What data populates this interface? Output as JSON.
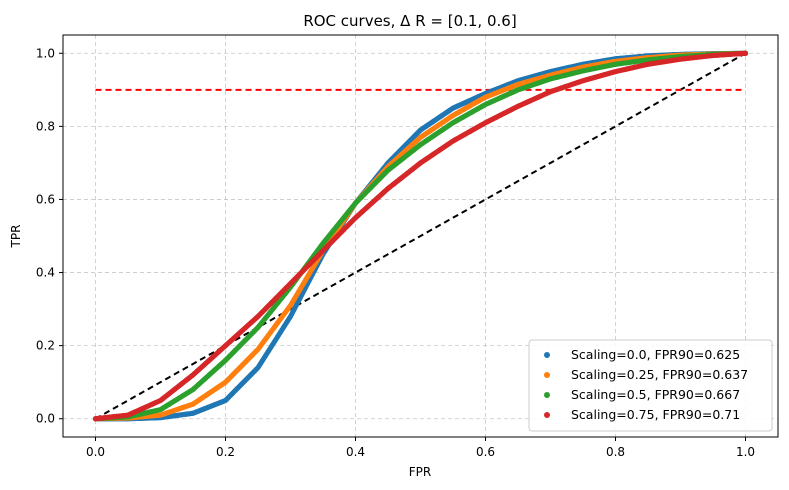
{
  "chart_data": {
    "type": "scatter",
    "title": "ROC curves, Δ R = [0.1, 0.6]",
    "xlabel": "FPR",
    "ylabel": "TPR",
    "xlim": [
      -0.05,
      1.05
    ],
    "ylim": [
      -0.05,
      1.05
    ],
    "xticks": [
      0.0,
      0.2,
      0.4,
      0.6,
      0.8,
      1.0
    ],
    "yticks": [
      0.0,
      0.2,
      0.4,
      0.6,
      0.8,
      1.0
    ],
    "xtick_labels": [
      "0.0",
      "0.2",
      "0.4",
      "0.6",
      "0.8",
      "1.0"
    ],
    "ytick_labels": [
      "0.0",
      "0.2",
      "0.4",
      "0.6",
      "0.8",
      "1.0"
    ],
    "grid": true,
    "legend_position": "lower-right",
    "series": [
      {
        "name": "Scaling=0.0, FPR90=0.625",
        "color": "#1f77b4",
        "x": [
          0.0,
          0.05,
          0.1,
          0.15,
          0.2,
          0.25,
          0.3,
          0.35,
          0.4,
          0.45,
          0.5,
          0.55,
          0.6,
          0.65,
          0.7,
          0.75,
          0.8,
          0.85,
          0.9,
          0.95,
          1.0
        ],
        "y": [
          0.0,
          0.0,
          0.003,
          0.015,
          0.05,
          0.14,
          0.28,
          0.45,
          0.59,
          0.7,
          0.79,
          0.85,
          0.89,
          0.925,
          0.95,
          0.97,
          0.985,
          0.993,
          0.997,
          0.999,
          1.0
        ]
      },
      {
        "name": "Scaling=0.25, FPR90=0.637",
        "color": "#ff7f0e",
        "x": [
          0.0,
          0.05,
          0.1,
          0.15,
          0.2,
          0.25,
          0.3,
          0.35,
          0.4,
          0.45,
          0.5,
          0.55,
          0.6,
          0.65,
          0.7,
          0.75,
          0.8,
          0.85,
          0.9,
          0.95,
          1.0
        ],
        "y": [
          0.0,
          0.002,
          0.01,
          0.04,
          0.1,
          0.19,
          0.31,
          0.46,
          0.59,
          0.69,
          0.77,
          0.83,
          0.88,
          0.915,
          0.94,
          0.962,
          0.978,
          0.988,
          0.995,
          0.998,
          1.0
        ]
      },
      {
        "name": "Scaling=0.5, FPR90=0.667",
        "color": "#2ca02c",
        "x": [
          0.0,
          0.05,
          0.1,
          0.15,
          0.2,
          0.25,
          0.3,
          0.35,
          0.4,
          0.45,
          0.5,
          0.55,
          0.6,
          0.65,
          0.7,
          0.75,
          0.8,
          0.85,
          0.9,
          0.95,
          1.0
        ],
        "y": [
          0.0,
          0.005,
          0.025,
          0.08,
          0.16,
          0.25,
          0.36,
          0.48,
          0.59,
          0.68,
          0.75,
          0.81,
          0.86,
          0.9,
          0.93,
          0.952,
          0.97,
          0.982,
          0.991,
          0.997,
          1.0
        ]
      },
      {
        "name": "Scaling=0.75, FPR90=0.71",
        "color": "#d62728",
        "x": [
          0.0,
          0.05,
          0.1,
          0.15,
          0.2,
          0.25,
          0.3,
          0.35,
          0.4,
          0.45,
          0.5,
          0.55,
          0.6,
          0.65,
          0.7,
          0.75,
          0.8,
          0.85,
          0.9,
          0.95,
          1.0
        ],
        "y": [
          0.0,
          0.01,
          0.05,
          0.12,
          0.2,
          0.28,
          0.37,
          0.46,
          0.55,
          0.63,
          0.7,
          0.76,
          0.81,
          0.855,
          0.895,
          0.925,
          0.95,
          0.97,
          0.984,
          0.994,
          1.0
        ]
      }
    ],
    "reference_lines": [
      {
        "kind": "diagonal",
        "color": "#000000",
        "x": [
          0.0,
          1.0
        ],
        "y": [
          0.0,
          1.0
        ]
      },
      {
        "kind": "tpr90",
        "color": "#ff0000",
        "x": [
          0.0,
          1.0
        ],
        "y": [
          0.9,
          0.9
        ]
      }
    ]
  }
}
